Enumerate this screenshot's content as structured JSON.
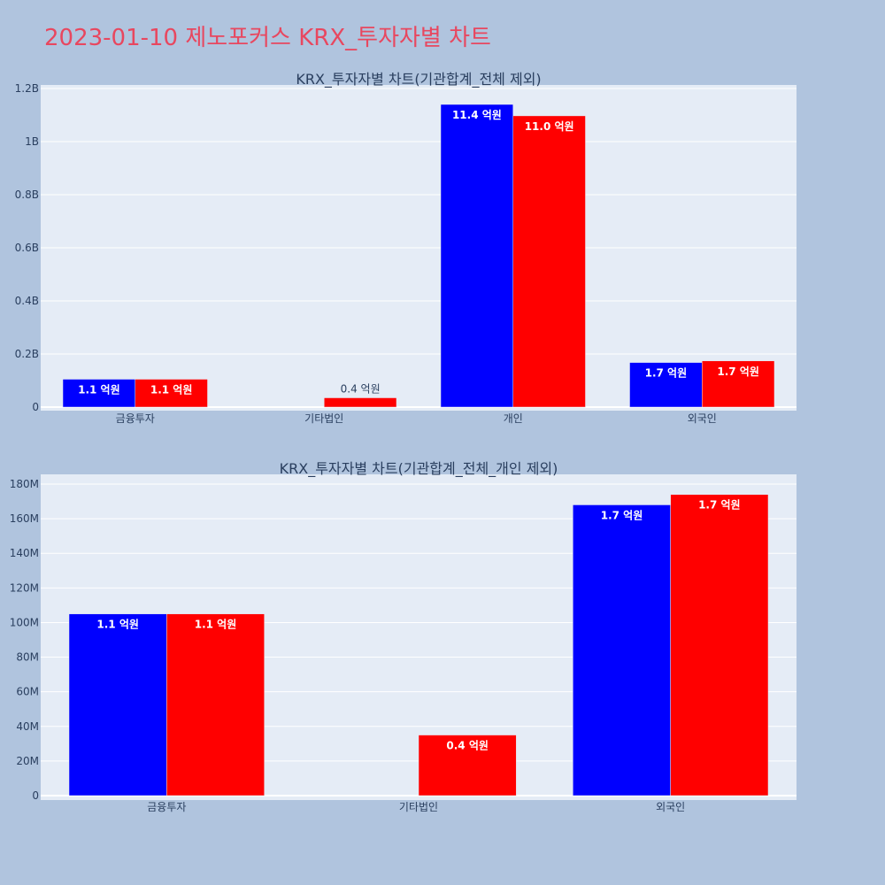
{
  "title": "2023-01-10 제노포커스 KRX_투자자별 차트",
  "colors": {
    "buy": "#0000ff",
    "sell": "#ff0000",
    "plot_bg": "#e5ecf6",
    "page_bg": "#b0c4de",
    "title": "#e8475f"
  },
  "chart_data": [
    {
      "type": "bar",
      "title": "KRX_투자자별 차트(기관합계_전체 제외)",
      "categories": [
        "금융투자",
        "기타법인",
        "개인",
        "외국인"
      ],
      "series": [
        {
          "values": [
            105000000,
            0,
            1140000000,
            168000000
          ],
          "labels": [
            "1.1 억원",
            "",
            "11.4 억원",
            "1.7 억원"
          ]
        },
        {
          "values": [
            105000000,
            35000000,
            1097000000,
            174000000
          ],
          "labels": [
            "1.1 억원",
            "0.4 억원",
            "11.0 억원",
            "1.7 억원"
          ]
        }
      ],
      "ylim": [
        0,
        1200000000
      ],
      "yticks": [
        0,
        200000000,
        400000000,
        600000000,
        800000000,
        1000000000,
        1200000000
      ],
      "ytick_labels": [
        "0",
        "0.2B",
        "0.4B",
        "0.6B",
        "0.8B",
        "1B",
        "1.2B"
      ],
      "grid": true
    },
    {
      "type": "bar",
      "title": "KRX_투자자별 차트(기관합계_전체_개인 제외)",
      "categories": [
        "금융투자",
        "기타법인",
        "외국인"
      ],
      "series": [
        {
          "values": [
            105000000,
            0,
            168000000
          ],
          "labels": [
            "1.1 억원",
            "",
            "1.7 억원"
          ]
        },
        {
          "values": [
            105000000,
            35000000,
            174000000
          ],
          "labels": [
            "1.1 억원",
            "0.4 억원",
            "1.7 억원"
          ]
        }
      ],
      "ylim": [
        0,
        180000000
      ],
      "yticks": [
        0,
        20000000,
        40000000,
        60000000,
        80000000,
        100000000,
        120000000,
        140000000,
        160000000,
        180000000
      ],
      "ytick_labels": [
        "0",
        "20M",
        "40M",
        "60M",
        "80M",
        "100M",
        "120M",
        "140M",
        "160M",
        "180M"
      ],
      "grid": true
    }
  ]
}
